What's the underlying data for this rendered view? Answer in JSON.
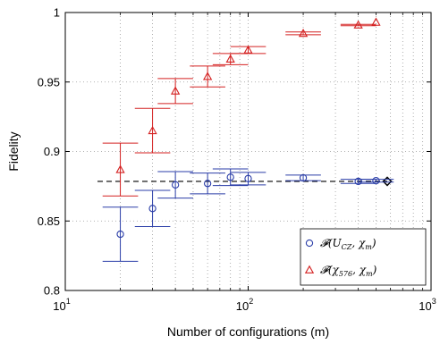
{
  "chart_data": {
    "type": "scatter",
    "xlabel": "Number of configurations (m)",
    "ylabel": "Fidelity",
    "xscale": "log",
    "xlim": [
      10,
      1000
    ],
    "ylim": [
      0.8,
      1.0
    ],
    "x_ticks": [
      10,
      100,
      1000
    ],
    "x_tick_labels": [
      {
        "base": "10",
        "exp": "1"
      },
      {
        "base": "10",
        "exp": "2"
      },
      {
        "base": "10",
        "exp": "3"
      }
    ],
    "y_ticks": [
      0.8,
      0.85,
      0.9,
      0.95,
      1.0
    ],
    "y_tick_labels": [
      "0.8",
      "0.85",
      "0.9",
      "0.95",
      "1"
    ],
    "grid": "dotted, on",
    "legend_position": "bottom-right",
    "series": [
      {
        "name": "𝓕(U_CZ, χ_m)",
        "marker": "circle",
        "color": "#2b3ea8",
        "points": [
          {
            "x": 20,
            "y": 0.8405,
            "err": 0.0195
          },
          {
            "x": 30,
            "y": 0.859,
            "err": 0.013
          },
          {
            "x": 40,
            "y": 0.876,
            "err": 0.0095
          },
          {
            "x": 60,
            "y": 0.877,
            "err": 0.0075
          },
          {
            "x": 80,
            "y": 0.8815,
            "err": 0.006
          },
          {
            "x": 100,
            "y": 0.8805,
            "err": 0.0045
          },
          {
            "x": 200,
            "y": 0.881,
            "err": 0.002
          },
          {
            "x": 400,
            "y": 0.8785,
            "err": 0.0015
          },
          {
            "x": 500,
            "y": 0.879,
            "err": 0.001
          }
        ]
      },
      {
        "name": "𝓕(χ_576, χ_m)",
        "marker": "triangle",
        "color": "#d42020",
        "points": [
          {
            "x": 20,
            "y": 0.887,
            "err": 0.019
          },
          {
            "x": 30,
            "y": 0.915,
            "err": 0.016
          },
          {
            "x": 40,
            "y": 0.9435,
            "err": 0.009
          },
          {
            "x": 60,
            "y": 0.954,
            "err": 0.0075
          },
          {
            "x": 80,
            "y": 0.9665,
            "err": 0.004
          },
          {
            "x": 100,
            "y": 0.973,
            "err": 0.0025
          },
          {
            "x": 200,
            "y": 0.985,
            "err": 0.001
          },
          {
            "x": 400,
            "y": 0.991,
            "err": 0.0005
          },
          {
            "x": 500,
            "y": 0.993,
            "err": 0.0003
          }
        ]
      }
    ],
    "reference_line": {
      "y": 0.8785,
      "x_from": 15,
      "x_to": 576,
      "style": "dashed",
      "color": "#000000"
    },
    "reference_marker": {
      "x": 576,
      "y": 0.8785,
      "marker": "diamond",
      "color": "#000000"
    }
  },
  "legend": {
    "items": [
      {
        "marker": "circle",
        "color": "#2b3ea8",
        "math_pre": "𝓕(U",
        "math_sub": "CZ",
        "math_post": ", χ",
        "math_sub2": "m",
        "math_end": ")"
      },
      {
        "marker": "triangle",
        "color": "#d42020",
        "math_pre": "𝓕(χ",
        "math_sub": "576",
        "math_post": ", χ",
        "math_sub2": "m",
        "math_end": ")"
      }
    ]
  }
}
